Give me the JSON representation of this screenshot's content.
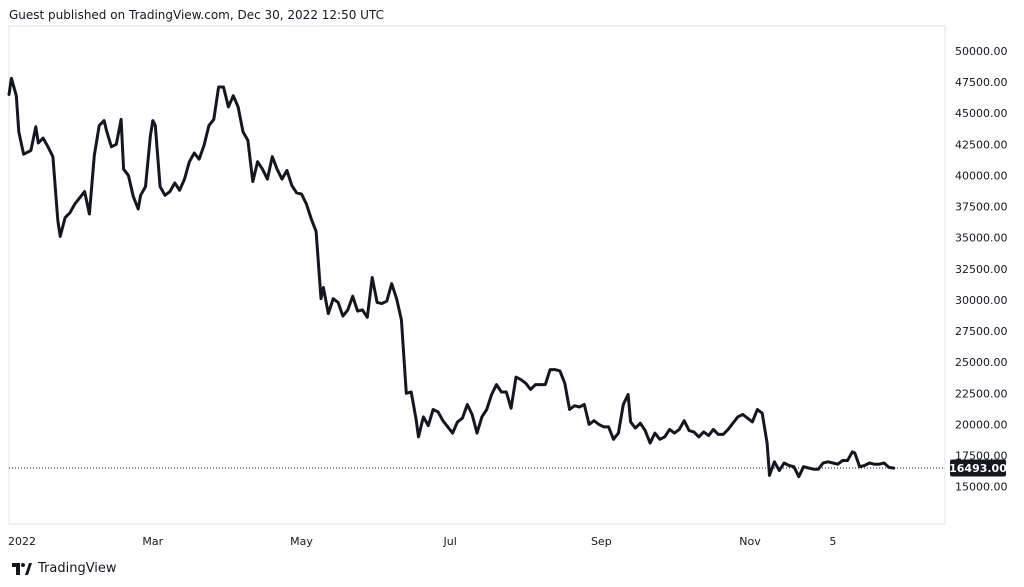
{
  "header": {
    "publisher_text": "Guest published on TradingView.com, Dec 30, 2022 12:50 UTC"
  },
  "footer": {
    "brand": "TradingView",
    "logo_icon": "tradingview-logo-icon"
  },
  "colors": {
    "line": "#131722",
    "background": "#ffffff",
    "border": "#e0e3eb",
    "last_price_badge": "#131722"
  },
  "chart_data": {
    "type": "line",
    "title": "",
    "xlabel": "",
    "ylabel": "",
    "ylim": [
      12000,
      52000
    ],
    "xlim": [
      "2022-01-01",
      "2023-01-20"
    ],
    "y_ticks": [
      "15000.00",
      "17500.00",
      "20000.00",
      "22500.00",
      "25000.00",
      "27500.00",
      "30000.00",
      "32500.00",
      "35000.00",
      "37500.00",
      "40000.00",
      "42500.00",
      "45000.00",
      "47500.00",
      "50000.00"
    ],
    "x_ticks": [
      {
        "label": "2022",
        "date": "2022-01-01"
      },
      {
        "label": "Mar",
        "date": "2022-03-01"
      },
      {
        "label": "May",
        "date": "2022-05-01"
      },
      {
        "label": "Jul",
        "date": "2022-07-01"
      },
      {
        "label": "Sep",
        "date": "2022-09-01"
      },
      {
        "label": "Nov",
        "date": "2022-11-01"
      },
      {
        "label": "5",
        "date": "2022-12-05"
      }
    ],
    "last_price_label": "16493.00",
    "last_price": 16493,
    "grid": false,
    "series": [
      {
        "points": [
          [
            "2022-01-01",
            46500
          ],
          [
            "2022-01-02",
            47800
          ],
          [
            "2022-01-04",
            46400
          ],
          [
            "2022-01-05",
            43500
          ],
          [
            "2022-01-07",
            41700
          ],
          [
            "2022-01-10",
            42000
          ],
          [
            "2022-01-12",
            43900
          ],
          [
            "2022-01-13",
            42600
          ],
          [
            "2022-01-15",
            43000
          ],
          [
            "2022-01-17",
            42300
          ],
          [
            "2022-01-19",
            41500
          ],
          [
            "2022-01-21",
            36400
          ],
          [
            "2022-01-22",
            35100
          ],
          [
            "2022-01-24",
            36600
          ],
          [
            "2022-01-26",
            37000
          ],
          [
            "2022-01-28",
            37700
          ],
          [
            "2022-01-30",
            38200
          ],
          [
            "2022-02-01",
            38700
          ],
          [
            "2022-02-03",
            36900
          ],
          [
            "2022-02-05",
            41600
          ],
          [
            "2022-02-07",
            44000
          ],
          [
            "2022-02-09",
            44400
          ],
          [
            "2022-02-10",
            43600
          ],
          [
            "2022-02-12",
            42300
          ],
          [
            "2022-02-14",
            42500
          ],
          [
            "2022-02-16",
            44500
          ],
          [
            "2022-02-17",
            40500
          ],
          [
            "2022-02-19",
            40000
          ],
          [
            "2022-02-21",
            38300
          ],
          [
            "2022-02-23",
            37300
          ],
          [
            "2022-02-24",
            38400
          ],
          [
            "2022-02-26",
            39100
          ],
          [
            "2022-02-28",
            43200
          ],
          [
            "2022-03-01",
            44400
          ],
          [
            "2022-03-02",
            44000
          ],
          [
            "2022-03-04",
            39100
          ],
          [
            "2022-03-06",
            38400
          ],
          [
            "2022-03-08",
            38700
          ],
          [
            "2022-03-10",
            39400
          ],
          [
            "2022-03-12",
            38800
          ],
          [
            "2022-03-14",
            39700
          ],
          [
            "2022-03-16",
            41100
          ],
          [
            "2022-03-18",
            41800
          ],
          [
            "2022-03-20",
            41300
          ],
          [
            "2022-03-22",
            42400
          ],
          [
            "2022-03-24",
            44000
          ],
          [
            "2022-03-26",
            44500
          ],
          [
            "2022-03-28",
            47100
          ],
          [
            "2022-03-30",
            47100
          ],
          [
            "2022-04-01",
            45500
          ],
          [
            "2022-04-03",
            46400
          ],
          [
            "2022-04-05",
            45500
          ],
          [
            "2022-04-07",
            43500
          ],
          [
            "2022-04-09",
            42800
          ],
          [
            "2022-04-11",
            39500
          ],
          [
            "2022-04-13",
            41100
          ],
          [
            "2022-04-15",
            40500
          ],
          [
            "2022-04-17",
            39700
          ],
          [
            "2022-04-19",
            41500
          ],
          [
            "2022-04-21",
            40500
          ],
          [
            "2022-04-23",
            39700
          ],
          [
            "2022-04-25",
            40400
          ],
          [
            "2022-04-27",
            39200
          ],
          [
            "2022-04-29",
            38600
          ],
          [
            "2022-05-01",
            38500
          ],
          [
            "2022-05-03",
            37700
          ],
          [
            "2022-05-05",
            36500
          ],
          [
            "2022-05-07",
            35500
          ],
          [
            "2022-05-09",
            30100
          ],
          [
            "2022-05-10",
            31000
          ],
          [
            "2022-05-12",
            28900
          ],
          [
            "2022-05-14",
            30100
          ],
          [
            "2022-05-16",
            29800
          ],
          [
            "2022-05-18",
            28700
          ],
          [
            "2022-05-20",
            29200
          ],
          [
            "2022-05-22",
            30300
          ],
          [
            "2022-05-24",
            29100
          ],
          [
            "2022-05-26",
            29200
          ],
          [
            "2022-05-28",
            28600
          ],
          [
            "2022-05-30",
            31800
          ],
          [
            "2022-06-01",
            29800
          ],
          [
            "2022-06-03",
            29700
          ],
          [
            "2022-06-05",
            29900
          ],
          [
            "2022-06-07",
            31300
          ],
          [
            "2022-06-09",
            30100
          ],
          [
            "2022-06-11",
            28400
          ],
          [
            "2022-06-13",
            22500
          ],
          [
            "2022-06-15",
            22600
          ],
          [
            "2022-06-17",
            20400
          ],
          [
            "2022-06-18",
            19000
          ],
          [
            "2022-06-20",
            20600
          ],
          [
            "2022-06-22",
            19900
          ],
          [
            "2022-06-24",
            21200
          ],
          [
            "2022-06-26",
            21000
          ],
          [
            "2022-06-28",
            20300
          ],
          [
            "2022-06-30",
            19800
          ],
          [
            "2022-07-02",
            19300
          ],
          [
            "2022-07-04",
            20200
          ],
          [
            "2022-07-06",
            20500
          ],
          [
            "2022-07-08",
            21600
          ],
          [
            "2022-07-10",
            20800
          ],
          [
            "2022-07-12",
            19300
          ],
          [
            "2022-07-14",
            20600
          ],
          [
            "2022-07-16",
            21200
          ],
          [
            "2022-07-18",
            22400
          ],
          [
            "2022-07-20",
            23200
          ],
          [
            "2022-07-22",
            22600
          ],
          [
            "2022-07-24",
            22600
          ],
          [
            "2022-07-26",
            21300
          ],
          [
            "2022-07-28",
            23800
          ],
          [
            "2022-07-30",
            23600
          ],
          [
            "2022-08-01",
            23300
          ],
          [
            "2022-08-03",
            22800
          ],
          [
            "2022-08-05",
            23200
          ],
          [
            "2022-08-07",
            23200
          ],
          [
            "2022-08-09",
            23200
          ],
          [
            "2022-08-11",
            24400
          ],
          [
            "2022-08-13",
            24400
          ],
          [
            "2022-08-15",
            24300
          ],
          [
            "2022-08-17",
            23300
          ],
          [
            "2022-08-19",
            21200
          ],
          [
            "2022-08-21",
            21500
          ],
          [
            "2022-08-23",
            21400
          ],
          [
            "2022-08-25",
            21600
          ],
          [
            "2022-08-27",
            20000
          ],
          [
            "2022-08-29",
            20300
          ],
          [
            "2022-08-31",
            20000
          ],
          [
            "2022-09-02",
            19800
          ],
          [
            "2022-09-04",
            19800
          ],
          [
            "2022-09-06",
            18800
          ],
          [
            "2022-09-08",
            19300
          ],
          [
            "2022-09-10",
            21600
          ],
          [
            "2022-09-12",
            22400
          ],
          [
            "2022-09-13",
            20200
          ],
          [
            "2022-09-15",
            19700
          ],
          [
            "2022-09-17",
            20100
          ],
          [
            "2022-09-19",
            19500
          ],
          [
            "2022-09-21",
            18500
          ],
          [
            "2022-09-23",
            19300
          ],
          [
            "2022-09-25",
            18800
          ],
          [
            "2022-09-27",
            19000
          ],
          [
            "2022-09-29",
            19600
          ],
          [
            "2022-10-01",
            19300
          ],
          [
            "2022-10-03",
            19600
          ],
          [
            "2022-10-05",
            20300
          ],
          [
            "2022-10-07",
            19500
          ],
          [
            "2022-10-09",
            19400
          ],
          [
            "2022-10-11",
            19000
          ],
          [
            "2022-10-13",
            19400
          ],
          [
            "2022-10-15",
            19100
          ],
          [
            "2022-10-17",
            19600
          ],
          [
            "2022-10-19",
            19200
          ],
          [
            "2022-10-21",
            19200
          ],
          [
            "2022-10-23",
            19600
          ],
          [
            "2022-10-25",
            20100
          ],
          [
            "2022-10-27",
            20600
          ],
          [
            "2022-10-29",
            20800
          ],
          [
            "2022-10-31",
            20500
          ],
          [
            "2022-11-02",
            20200
          ],
          [
            "2022-11-04",
            21200
          ],
          [
            "2022-11-06",
            20900
          ],
          [
            "2022-11-08",
            18500
          ],
          [
            "2022-11-09",
            15900
          ],
          [
            "2022-11-11",
            17000
          ],
          [
            "2022-11-13",
            16300
          ],
          [
            "2022-11-15",
            16900
          ],
          [
            "2022-11-17",
            16700
          ],
          [
            "2022-11-19",
            16600
          ],
          [
            "2022-11-21",
            15800
          ],
          [
            "2022-11-23",
            16600
          ],
          [
            "2022-11-25",
            16500
          ],
          [
            "2022-11-27",
            16400
          ],
          [
            "2022-11-29",
            16400
          ],
          [
            "2022-12-01",
            16900
          ],
          [
            "2022-12-03",
            17000
          ],
          [
            "2022-12-05",
            16900
          ],
          [
            "2022-12-07",
            16800
          ],
          [
            "2022-12-09",
            17100
          ],
          [
            "2022-12-11",
            17100
          ],
          [
            "2022-12-13",
            17800
          ],
          [
            "2022-12-14",
            17700
          ],
          [
            "2022-12-16",
            16600
          ],
          [
            "2022-12-18",
            16700
          ],
          [
            "2022-12-20",
            16900
          ],
          [
            "2022-12-22",
            16800
          ],
          [
            "2022-12-24",
            16800
          ],
          [
            "2022-12-26",
            16900
          ],
          [
            "2022-12-28",
            16550
          ],
          [
            "2022-12-30",
            16493
          ]
        ]
      }
    ]
  }
}
